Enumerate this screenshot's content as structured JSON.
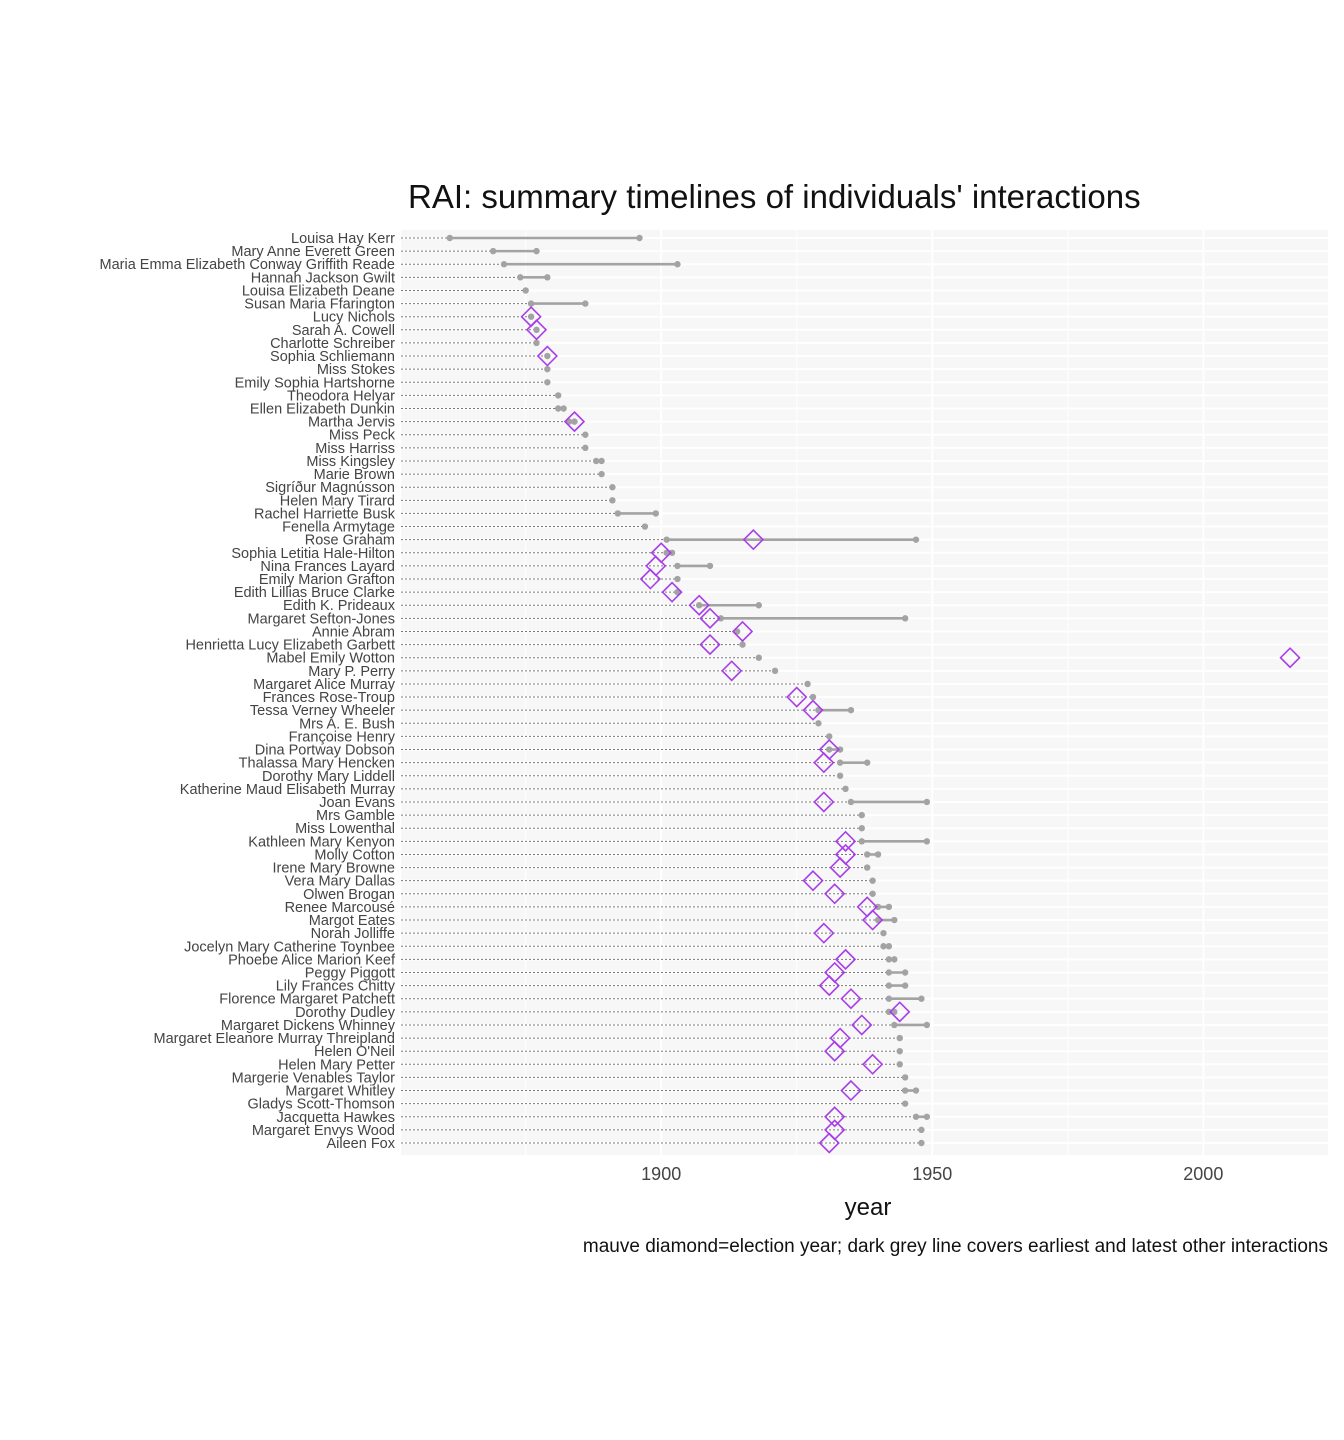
{
  "chart_data": {
    "type": "dumbbell-timeline",
    "title": "RAI: summary timelines of individuals' interactions",
    "xlabel": "year",
    "caption": "mauve diamond=election year; dark grey line covers earliest and latest other interactions",
    "xlim": [
      1852,
      2023
    ],
    "xticks": [
      1900,
      1950,
      2000
    ],
    "grid": true,
    "colors": {
      "panel_bg": "#f7f7f7",
      "grid_major": "#ffffff",
      "segment": "#a3a3a3",
      "point": "#a3a3a3",
      "leader": "#777777",
      "diamond": "#a83ee8"
    },
    "legend": "none",
    "series": [
      {
        "name": "Louisa Hay Kerr",
        "start": 1861,
        "end": 1896,
        "points": [
          1861,
          1896
        ],
        "election": null
      },
      {
        "name": "Mary Anne Everett Green",
        "start": 1869,
        "end": 1877,
        "points": [
          1869,
          1877
        ],
        "election": null
      },
      {
        "name": "Maria Emma Elizabeth Conway Griffith Reade",
        "start": 1871,
        "end": 1903,
        "points": [
          1871,
          1903
        ],
        "election": null
      },
      {
        "name": "Hannah Jackson Gwilt",
        "start": 1874,
        "end": 1879,
        "points": [
          1874,
          1879
        ],
        "election": null
      },
      {
        "name": "Louisa Elizabeth Deane",
        "start": 1875,
        "end": 1875,
        "points": [
          1875
        ],
        "election": null
      },
      {
        "name": "Susan Maria Ffarington",
        "start": 1876,
        "end": 1886,
        "points": [
          1876,
          1886
        ],
        "election": null
      },
      {
        "name": "Lucy Nichols",
        "start": 1876,
        "end": 1876,
        "points": [
          1876
        ],
        "election": 1876
      },
      {
        "name": "Sarah A. Cowell",
        "start": 1877,
        "end": 1877,
        "points": [
          1877
        ],
        "election": 1877
      },
      {
        "name": "Charlotte Schreiber",
        "start": 1877,
        "end": 1877,
        "points": [
          1877
        ],
        "election": null
      },
      {
        "name": "Sophia Schliemann",
        "start": 1879,
        "end": 1879,
        "points": [
          1879
        ],
        "election": 1879
      },
      {
        "name": "Miss Stokes",
        "start": 1879,
        "end": 1879,
        "points": [
          1879
        ],
        "election": null
      },
      {
        "name": "Emily Sophia Hartshorne",
        "start": 1879,
        "end": 1879,
        "points": [
          1879
        ],
        "election": null
      },
      {
        "name": "Theodora Helyar",
        "start": 1881,
        "end": 1881,
        "points": [
          1881
        ],
        "election": null
      },
      {
        "name": "Ellen Elizabeth Dunkin",
        "start": 1881,
        "end": 1882,
        "points": [
          1881,
          1882
        ],
        "election": null
      },
      {
        "name": "Martha Jervis",
        "start": 1883,
        "end": 1884,
        "points": [
          1883,
          1884
        ],
        "election": 1884
      },
      {
        "name": "Miss Peck",
        "start": 1886,
        "end": 1886,
        "points": [
          1886
        ],
        "election": null
      },
      {
        "name": "Miss Harriss",
        "start": 1886,
        "end": 1886,
        "points": [
          1886
        ],
        "election": null
      },
      {
        "name": "Miss Kingsley",
        "start": 1888,
        "end": 1889,
        "points": [
          1888,
          1889
        ],
        "election": null
      },
      {
        "name": "Marie Brown",
        "start": 1889,
        "end": 1889,
        "points": [
          1889
        ],
        "election": null
      },
      {
        "name": "Sigríður Magnússon",
        "start": 1891,
        "end": 1891,
        "points": [
          1891
        ],
        "election": null
      },
      {
        "name": "Helen Mary Tirard",
        "start": 1891,
        "end": 1891,
        "points": [
          1891
        ],
        "election": null
      },
      {
        "name": "Rachel Harriette Busk",
        "start": 1892,
        "end": 1899,
        "points": [
          1892,
          1899
        ],
        "election": null
      },
      {
        "name": "Fenella Armytage",
        "start": 1897,
        "end": 1897,
        "points": [
          1897
        ],
        "election": null
      },
      {
        "name": "Rose Graham",
        "start": 1901,
        "end": 1947,
        "points": [
          1901,
          1947
        ],
        "election": 1917
      },
      {
        "name": "Sophia Letitia Hale-Hilton",
        "start": 1901,
        "end": 1902,
        "points": [
          1901,
          1902
        ],
        "election": 1900
      },
      {
        "name": "Nina Frances Layard",
        "start": 1903,
        "end": 1909,
        "points": [
          1903,
          1909
        ],
        "election": 1899
      },
      {
        "name": "Emily Marion Grafton",
        "start": 1903,
        "end": 1903,
        "points": [
          1903
        ],
        "election": 1898
      },
      {
        "name": "Edith Lillias Bruce Clarke",
        "start": 1903,
        "end": 1903,
        "points": [
          1903
        ],
        "election": 1902
      },
      {
        "name": "Edith K. Prideaux",
        "start": 1907,
        "end": 1918,
        "points": [
          1907,
          1918
        ],
        "election": 1907
      },
      {
        "name": "Margaret Sefton-Jones",
        "start": 1911,
        "end": 1945,
        "points": [
          1911,
          1945
        ],
        "election": 1909
      },
      {
        "name": "Annie Abram",
        "start": 1914,
        "end": 1914,
        "points": [
          1914
        ],
        "election": 1915
      },
      {
        "name": "Henrietta Lucy Elizabeth Garbett",
        "start": 1915,
        "end": 1915,
        "points": [
          1915
        ],
        "election": 1909
      },
      {
        "name": "Mabel Emily Wotton",
        "start": 1918,
        "end": 1918,
        "points": [
          1918
        ],
        "election": 2016
      },
      {
        "name": "Mary P. Perry",
        "start": 1921,
        "end": 1921,
        "points": [
          1921
        ],
        "election": 1913
      },
      {
        "name": "Margaret Alice Murray",
        "start": 1927,
        "end": 1927,
        "points": [
          1927
        ],
        "election": null
      },
      {
        "name": "Frances Rose-Troup",
        "start": 1928,
        "end": 1928,
        "points": [
          1928
        ],
        "election": 1925
      },
      {
        "name": "Tessa Verney Wheeler",
        "start": 1929,
        "end": 1935,
        "points": [
          1929,
          1935
        ],
        "election": 1928
      },
      {
        "name": "Mrs A. E. Bush",
        "start": 1929,
        "end": 1929,
        "points": [
          1929
        ],
        "election": null
      },
      {
        "name": "Françoise Henry",
        "start": 1931,
        "end": 1931,
        "points": [
          1931
        ],
        "election": null
      },
      {
        "name": "Dina Portway Dobson",
        "start": 1931,
        "end": 1933,
        "points": [
          1931,
          1933
        ],
        "election": 1931
      },
      {
        "name": "Thalassa Mary Hencken",
        "start": 1933,
        "end": 1938,
        "points": [
          1933,
          1938
        ],
        "election": 1930
      },
      {
        "name": "Dorothy Mary Liddell",
        "start": 1933,
        "end": 1933,
        "points": [
          1933
        ],
        "election": null
      },
      {
        "name": "Katherine Maud Elisabeth Murray",
        "start": 1934,
        "end": 1934,
        "points": [
          1934
        ],
        "election": null
      },
      {
        "name": "Joan Evans",
        "start": 1935,
        "end": 1949,
        "points": [
          1935,
          1949
        ],
        "election": 1930
      },
      {
        "name": "Mrs Gamble",
        "start": 1937,
        "end": 1937,
        "points": [
          1937
        ],
        "election": null
      },
      {
        "name": "Miss Lowenthal",
        "start": 1937,
        "end": 1937,
        "points": [
          1937
        ],
        "election": null
      },
      {
        "name": "Kathleen Mary Kenyon",
        "start": 1937,
        "end": 1949,
        "points": [
          1937,
          1949
        ],
        "election": 1934
      },
      {
        "name": "Molly Cotton",
        "start": 1938,
        "end": 1940,
        "points": [
          1938,
          1940
        ],
        "election": 1934
      },
      {
        "name": "Irene Mary Browne",
        "start": 1938,
        "end": 1938,
        "points": [
          1938
        ],
        "election": 1933
      },
      {
        "name": "Vera Mary Dallas",
        "start": 1939,
        "end": 1939,
        "points": [
          1939
        ],
        "election": 1928
      },
      {
        "name": "Olwen Brogan",
        "start": 1939,
        "end": 1939,
        "points": [
          1939
        ],
        "election": 1932
      },
      {
        "name": "Renee Marcousé",
        "start": 1940,
        "end": 1942,
        "points": [
          1940,
          1942
        ],
        "election": 1938
      },
      {
        "name": "Margot Eates",
        "start": 1940,
        "end": 1943,
        "points": [
          1940,
          1943
        ],
        "election": 1939
      },
      {
        "name": "Norah Jolliffe",
        "start": 1941,
        "end": 1941,
        "points": [
          1941
        ],
        "election": 1930
      },
      {
        "name": "Jocelyn Mary Catherine Toynbee",
        "start": 1941,
        "end": 1942,
        "points": [
          1941,
          1942
        ],
        "election": null
      },
      {
        "name": "Phoebe Alice Marion Keef",
        "start": 1942,
        "end": 1943,
        "points": [
          1942,
          1943
        ],
        "election": 1934
      },
      {
        "name": "Peggy Piggott",
        "start": 1942,
        "end": 1945,
        "points": [
          1942,
          1945
        ],
        "election": 1932
      },
      {
        "name": "Lily Frances Chitty",
        "start": 1942,
        "end": 1945,
        "points": [
          1942,
          1945
        ],
        "election": 1931
      },
      {
        "name": "Florence Margaret Patchett",
        "start": 1942,
        "end": 1948,
        "points": [
          1942,
          1948
        ],
        "election": 1935
      },
      {
        "name": "Dorothy Dudley",
        "start": 1942,
        "end": 1943,
        "points": [
          1942,
          1943
        ],
        "election": 1944
      },
      {
        "name": "Margaret Dickens Whinney",
        "start": 1943,
        "end": 1949,
        "points": [
          1943,
          1949
        ],
        "election": 1937
      },
      {
        "name": "Margaret Eleanore Murray Threipland",
        "start": 1944,
        "end": 1944,
        "points": [
          1944
        ],
        "election": 1933
      },
      {
        "name": "Helen O'Neil",
        "start": 1944,
        "end": 1944,
        "points": [
          1944
        ],
        "election": 1932
      },
      {
        "name": "Helen Mary Petter",
        "start": 1944,
        "end": 1944,
        "points": [
          1944
        ],
        "election": 1939
      },
      {
        "name": "Margerie Venables Taylor",
        "start": 1945,
        "end": 1945,
        "points": [
          1945
        ],
        "election": null
      },
      {
        "name": "Margaret Whitley",
        "start": 1945,
        "end": 1947,
        "points": [
          1945,
          1947
        ],
        "election": 1935
      },
      {
        "name": "Gladys Scott-Thomson",
        "start": 1945,
        "end": 1945,
        "points": [
          1945
        ],
        "election": null
      },
      {
        "name": "Jacquetta Hawkes",
        "start": 1947,
        "end": 1949,
        "points": [
          1947,
          1949
        ],
        "election": 1932
      },
      {
        "name": "Margaret Envys Wood",
        "start": 1948,
        "end": 1948,
        "points": [
          1948
        ],
        "election": 1932
      },
      {
        "name": "Aileen Fox",
        "start": 1948,
        "end": 1948,
        "points": [
          1948
        ],
        "election": 1931
      }
    ]
  }
}
